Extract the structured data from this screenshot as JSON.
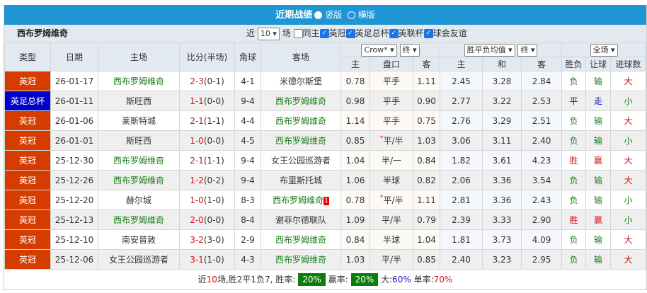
{
  "title": {
    "label": "近期战绩",
    "option1": "竖版",
    "option2": "横版",
    "selected": "竖版"
  },
  "team": "西布罗姆维奇",
  "filters": {
    "prefix": "近",
    "count": "10",
    "suffix": "场",
    "same_home": "同主",
    "leagues": [
      "英冠",
      "英足总杯",
      "英联杯",
      "球会友谊"
    ]
  },
  "headers": {
    "type": "类型",
    "date": "日期",
    "home": "主场",
    "score": "比分(半场)",
    "corner": "角球",
    "away": "客场",
    "company": "Crow*",
    "company_stage": "终",
    "avg": "胜平负均值",
    "avg_stage": "终",
    "period": "全场",
    "h": "主",
    "line": "盘口",
    "a": "客",
    "h2": "主",
    "d": "和",
    "a2": "客",
    "wl": "胜负",
    "hcp": "让球",
    "goals": "进球数"
  },
  "colors": {
    "league_english_championship": "#d63c00",
    "league_fa_cup": "#0000cc",
    "team_highlight": "#1a7f1a"
  },
  "rows": [
    {
      "league": "英冠",
      "color": "#d63c00",
      "date": "26-01-17",
      "home": "西布罗姆维奇",
      "score": "2-3",
      "half": "(0-1)",
      "corner": "4-1",
      "away": "米德尔斯堡",
      "hl": "home",
      "oh": "0.78",
      "line": "平手",
      "star": false,
      "oa": "1.11",
      "w": "2.45",
      "d": "3.28",
      "l": "2.84",
      "wl": "负",
      "hc": "输",
      "g": "大"
    },
    {
      "league": "英足总杯",
      "color": "#0000cc",
      "date": "26-01-11",
      "home": "斯旺西",
      "score": "1-1",
      "half": "(0-0)",
      "corner": "9-4",
      "away": "西布罗姆维奇",
      "hl": "away",
      "oh": "0.98",
      "line": "平手",
      "star": false,
      "oa": "0.90",
      "w": "2.77",
      "d": "3.22",
      "l": "2.53",
      "wl": "平",
      "hc": "走",
      "g": "小"
    },
    {
      "league": "英冠",
      "color": "#d63c00",
      "date": "26-01-06",
      "home": "莱斯特城",
      "score": "2-1",
      "half": "(1-1)",
      "corner": "4-4",
      "away": "西布罗姆维奇",
      "hl": "away",
      "oh": "1.14",
      "line": "平手",
      "star": false,
      "oa": "0.75",
      "w": "2.76",
      "d": "3.29",
      "l": "2.51",
      "wl": "负",
      "hc": "输",
      "g": "大"
    },
    {
      "league": "英冠",
      "color": "#d63c00",
      "date": "26-01-01",
      "home": "斯旺西",
      "score": "1-0",
      "half": "(0-0)",
      "corner": "4-5",
      "away": "西布罗姆维奇",
      "hl": "away",
      "oh": "0.85",
      "line": "平/半",
      "star": true,
      "oa": "1.03",
      "w": "3.06",
      "d": "3.11",
      "l": "2.40",
      "wl": "负",
      "hc": "输",
      "g": "小"
    },
    {
      "league": "英冠",
      "color": "#d63c00",
      "date": "25-12-30",
      "home": "西布罗姆维奇",
      "score": "2-1",
      "half": "(1-1)",
      "corner": "9-4",
      "away": "女王公园巡游者",
      "hl": "home",
      "oh": "1.04",
      "line": "半/一",
      "star": false,
      "oa": "0.84",
      "w": "1.82",
      "d": "3.61",
      "l": "4.23",
      "wl": "胜",
      "hc": "赢",
      "g": "大"
    },
    {
      "league": "英冠",
      "color": "#d63c00",
      "date": "25-12-26",
      "home": "西布罗姆维奇",
      "score": "1-2",
      "half": "(0-2)",
      "corner": "9-4",
      "away": "布里斯托城",
      "hl": "home",
      "oh": "1.06",
      "line": "半球",
      "star": false,
      "oa": "0.82",
      "w": "2.06",
      "d": "3.36",
      "l": "3.54",
      "wl": "负",
      "hc": "输",
      "g": "大"
    },
    {
      "league": "英冠",
      "color": "#d63c00",
      "date": "25-12-20",
      "home": "赫尔城",
      "score": "1-0",
      "half": "(1-0)",
      "corner": "8-3",
      "away": "西布罗姆维奇",
      "hl": "away",
      "red_card": "1",
      "oh": "0.78",
      "line": "平/半",
      "star": true,
      "oa": "1.11",
      "w": "2.81",
      "d": "3.36",
      "l": "2.43",
      "wl": "负",
      "hc": "输",
      "g": "小"
    },
    {
      "league": "英冠",
      "color": "#d63c00",
      "date": "25-12-13",
      "home": "西布罗姆维奇",
      "score": "2-0",
      "half": "(0-0)",
      "corner": "8-4",
      "away": "谢菲尔德联队",
      "hl": "home",
      "oh": "1.09",
      "line": "平/半",
      "star": false,
      "oa": "0.79",
      "w": "2.39",
      "d": "3.33",
      "l": "2.90",
      "wl": "胜",
      "hc": "赢",
      "g": "小"
    },
    {
      "league": "英冠",
      "color": "#d63c00",
      "date": "25-12-10",
      "home": "南安普敦",
      "score": "3-2",
      "half": "(3-0)",
      "corner": "2-9",
      "away": "西布罗姆维奇",
      "hl": "away",
      "oh": "0.84",
      "line": "半球",
      "star": false,
      "oa": "1.04",
      "w": "1.81",
      "d": "3.73",
      "l": "4.09",
      "wl": "负",
      "hc": "输",
      "g": "大"
    },
    {
      "league": "英冠",
      "color": "#d63c00",
      "date": "25-12-06",
      "home": "女王公园巡游者",
      "score": "3-1",
      "half": "(1-0)",
      "corner": "4-3",
      "away": "西布罗姆维奇",
      "hl": "away",
      "oh": "1.03",
      "line": "平/半",
      "star": false,
      "oa": "0.85",
      "w": "2.40",
      "d": "3.23",
      "l": "2.95",
      "wl": "负",
      "hc": "输",
      "g": "大"
    }
  ],
  "footer": {
    "p1": "近",
    "n": "10",
    "p2": "场,胜2平1负7, 胜率:",
    "win_rate": "20%",
    "p3": "赢率:",
    "hcp_rate": "20%",
    "p4": "大:",
    "over_rate": "60%",
    "p5": "单率:",
    "odd_rate": "70%"
  }
}
